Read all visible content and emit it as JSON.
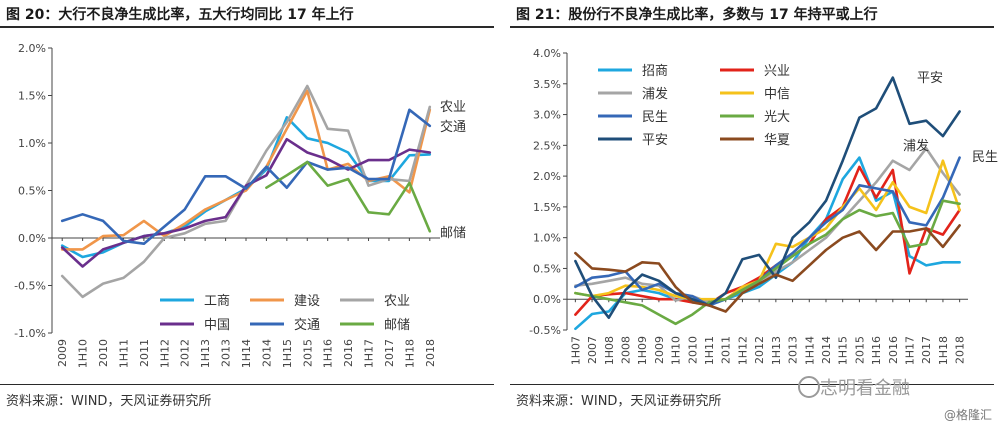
{
  "chart_data": [
    {
      "type": "line",
      "title": "图 20：大行不良净生成比率，五大行均同比 17 年上行",
      "source": "资料来源：WIND，天风证券研究所",
      "ylim": [
        -1.0,
        2.0
      ],
      "yticks": [
        "-1.0%",
        "-0.5%",
        "0.0%",
        "0.5%",
        "1.0%",
        "1.5%",
        "2.0%"
      ],
      "categories": [
        "2009",
        "1H10",
        "2010",
        "1H11",
        "2011",
        "1H12",
        "2012",
        "1H13",
        "2013",
        "1H14",
        "2014",
        "1H15",
        "2015",
        "1H16",
        "2016",
        "1H17",
        "2017",
        "1H18",
        "2018"
      ],
      "grid": false,
      "series": [
        {
          "name": "工商",
          "color": "#1ea7df",
          "values": [
            -0.08,
            -0.2,
            -0.15,
            -0.05,
            0.02,
            0.05,
            0.12,
            0.28,
            0.4,
            0.52,
            0.72,
            1.27,
            1.05,
            1.0,
            0.9,
            0.6,
            0.6,
            0.87,
            0.88
          ]
        },
        {
          "name": "建设",
          "color": "#f0964a",
          "values": [
            -0.12,
            -0.12,
            0.02,
            0.03,
            0.18,
            0.02,
            0.15,
            0.3,
            0.4,
            0.5,
            0.75,
            1.15,
            1.55,
            0.72,
            0.78,
            0.6,
            0.65,
            0.48,
            1.35
          ]
        },
        {
          "name": "农业",
          "color": "#a5a5a5",
          "values": [
            -0.4,
            -0.62,
            -0.48,
            -0.42,
            -0.25,
            0.0,
            0.05,
            0.15,
            0.18,
            0.55,
            0.92,
            1.22,
            1.6,
            1.15,
            1.13,
            0.55,
            0.62,
            0.6,
            1.38
          ]
        },
        {
          "name": "中国",
          "color": "#6a2f8c",
          "values": [
            -0.1,
            -0.3,
            -0.12,
            -0.05,
            0.02,
            0.05,
            0.1,
            0.18,
            0.22,
            0.55,
            0.66,
            1.04,
            0.9,
            0.83,
            0.72,
            0.82,
            0.82,
            0.93,
            0.9
          ]
        },
        {
          "name": "交通",
          "color": "#3568b7",
          "values": [
            0.18,
            0.25,
            0.18,
            -0.03,
            -0.06,
            0.12,
            0.3,
            0.65,
            0.65,
            0.52,
            0.75,
            0.53,
            0.8,
            0.72,
            0.74,
            0.62,
            0.62,
            1.35,
            1.18
          ]
        },
        {
          "name": "邮储",
          "color": "#6aaa43",
          "values": [
            null,
            null,
            null,
            null,
            null,
            null,
            null,
            null,
            null,
            null,
            0.53,
            0.66,
            0.8,
            0.55,
            0.62,
            0.27,
            0.25,
            0.58,
            0.07
          ]
        }
      ],
      "annotations": [
        "农业",
        "交通",
        "邮储"
      ]
    },
    {
      "type": "line",
      "title": "图 21：股份行不良净生成比率，多数与 17 年持平或上行",
      "source": "资料来源：WIND，天风证券研究所",
      "ylim": [
        -0.5,
        4.0
      ],
      "yticks": [
        "-0.5%",
        "0.0%",
        "0.5%",
        "1.0%",
        "1.5%",
        "2.0%",
        "2.5%",
        "3.0%",
        "3.5%",
        "4.0%"
      ],
      "categories": [
        "1H07",
        "2007",
        "1H08",
        "2008",
        "1H09",
        "2009",
        "1H10",
        "2010",
        "1H11",
        "2011",
        "1H12",
        "2012",
        "1H13",
        "2013",
        "1H14",
        "2014",
        "1H15",
        "2015",
        "1H16",
        "2016",
        "1H17",
        "2017",
        "1H18",
        "2018"
      ],
      "grid": false,
      "series": [
        {
          "name": "招商",
          "color": "#1ea7df",
          "values": [
            -0.48,
            -0.24,
            -0.2,
            0.1,
            0.15,
            0.1,
            0.0,
            0.0,
            -0.1,
            0.0,
            0.1,
            0.2,
            0.4,
            0.6,
            1.0,
            1.3,
            1.95,
            2.3,
            1.6,
            1.75,
            0.7,
            0.55,
            0.6,
            0.6
          ]
        },
        {
          "name": "兴业",
          "color": "#e2231a",
          "values": [
            -0.25,
            0.05,
            0.08,
            0.1,
            0.05,
            0.0,
            0.0,
            -0.05,
            -0.08,
            0.1,
            0.2,
            0.35,
            0.55,
            0.7,
            0.9,
            1.3,
            1.5,
            2.15,
            1.65,
            2.1,
            0.42,
            1.15,
            1.05,
            1.45
          ]
        },
        {
          "name": "浦发",
          "color": "#a5a5a5",
          "values": [
            0.22,
            0.25,
            0.3,
            0.35,
            0.25,
            0.22,
            -0.02,
            0.05,
            -0.05,
            0.0,
            0.15,
            0.3,
            0.45,
            0.6,
            0.8,
            1.0,
            1.3,
            1.6,
            1.9,
            2.25,
            2.1,
            2.45,
            2.05,
            1.7
          ]
        },
        {
          "name": "中信",
          "color": "#f5c21b",
          "values": [
            0.1,
            0.05,
            0.1,
            0.22,
            0.2,
            0.15,
            0.05,
            0.0,
            0.0,
            0.0,
            0.2,
            0.3,
            0.9,
            0.85,
            1.0,
            1.15,
            1.5,
            1.8,
            1.45,
            1.9,
            1.5,
            1.4,
            2.25,
            1.45
          ]
        },
        {
          "name": "民生",
          "color": "#3568b7",
          "values": [
            0.2,
            0.35,
            0.38,
            0.45,
            0.15,
            0.25,
            0.1,
            0.05,
            -0.1,
            0.0,
            0.15,
            0.3,
            0.55,
            0.75,
            1.0,
            1.25,
            1.45,
            1.85,
            1.8,
            1.75,
            1.25,
            1.2,
            1.65,
            2.3
          ]
        },
        {
          "name": "光大",
          "color": "#6aaa43",
          "values": [
            0.1,
            0.05,
            0.0,
            -0.05,
            -0.1,
            -0.25,
            -0.4,
            -0.25,
            -0.05,
            0.0,
            0.15,
            0.3,
            0.5,
            0.7,
            0.9,
            1.05,
            1.3,
            1.45,
            1.35,
            1.4,
            0.85,
            0.9,
            1.6,
            1.55
          ]
        },
        {
          "name": "平安",
          "color": "#1f4e79",
          "values": [
            0.62,
            0.05,
            -0.3,
            0.15,
            0.4,
            0.3,
            0.1,
            0.0,
            -0.1,
            0.1,
            0.65,
            0.72,
            0.35,
            1.0,
            1.25,
            1.6,
            2.25,
            2.95,
            3.1,
            3.6,
            2.85,
            2.9,
            2.65,
            3.05
          ]
        },
        {
          "name": "华夏",
          "color": "#8b4a1f",
          "values": [
            0.75,
            0.5,
            0.48,
            0.45,
            0.6,
            0.58,
            0.2,
            -0.05,
            -0.1,
            -0.2,
            0.1,
            0.25,
            0.4,
            0.3,
            0.55,
            0.8,
            1.0,
            1.1,
            0.8,
            1.1,
            1.1,
            1.15,
            0.85,
            1.2
          ]
        }
      ],
      "annotations": [
        "平安",
        "浦发",
        "民生"
      ]
    }
  ],
  "watermark": "志明看金融",
  "credit": "@格隆汇",
  "colors": {
    "title_rule": "#2a2a2a",
    "axis": "#444444"
  }
}
